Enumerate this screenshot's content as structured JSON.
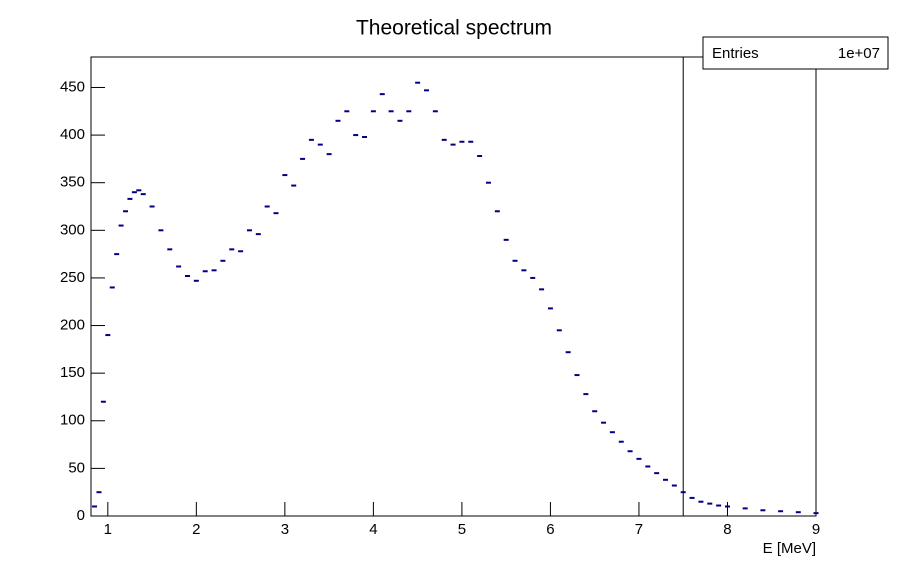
{
  "chart_data": {
    "type": "line",
    "title": "Theoretical spectrum",
    "x_label": "E [MeV]",
    "color": "#000080",
    "x": [
      0.85,
      0.9,
      0.95,
      1.0,
      1.05,
      1.1,
      1.15,
      1.2,
      1.25,
      1.3,
      1.35,
      1.4,
      1.5,
      1.6,
      1.7,
      1.8,
      1.9,
      2.0,
      2.1,
      2.2,
      2.3,
      2.4,
      2.5,
      2.6,
      2.7,
      2.8,
      2.9,
      3.0,
      3.1,
      3.2,
      3.3,
      3.4,
      3.5,
      3.6,
      3.7,
      3.8,
      3.9,
      4.0,
      4.1,
      4.2,
      4.3,
      4.4,
      4.5,
      4.6,
      4.7,
      4.8,
      4.9,
      5.0,
      5.1,
      5.2,
      5.3,
      5.4,
      5.5,
      5.6,
      5.7,
      5.8,
      5.9,
      6.0,
      6.1,
      6.2,
      6.3,
      6.4,
      6.5,
      6.6,
      6.7,
      6.8,
      6.9,
      7.0,
      7.1,
      7.2,
      7.3,
      7.4,
      7.5,
      7.6,
      7.7,
      7.8,
      7.9,
      8.0,
      8.2,
      8.4,
      8.6,
      8.8,
      9.0
    ],
    "values": [
      10,
      25,
      120,
      190,
      240,
      275,
      305,
      320,
      333,
      340,
      342,
      338,
      325,
      300,
      280,
      262,
      252,
      247,
      257,
      258,
      268,
      280,
      278,
      300,
      296,
      325,
      318,
      358,
      347,
      375,
      395,
      390,
      380,
      415,
      425,
      400,
      398,
      425,
      443,
      425,
      415,
      425,
      455,
      447,
      425,
      395,
      390,
      393,
      393,
      378,
      350,
      320,
      290,
      268,
      258,
      250,
      238,
      218,
      195,
      172,
      148,
      128,
      110,
      98,
      88,
      78,
      68,
      60,
      52,
      45,
      38,
      32,
      25,
      19,
      15,
      13,
      11,
      10,
      8,
      6,
      5,
      4,
      3
    ],
    "xlim": [
      0.81,
      9
    ],
    "ylim": [
      0,
      482
    ],
    "xticks": [
      1,
      2,
      3,
      4,
      5,
      6,
      7,
      8,
      9
    ],
    "yticks": [
      0,
      50,
      100,
      150,
      200,
      250,
      300,
      350,
      400,
      450
    ],
    "vline": 7.5,
    "stats": {
      "label": "Entries",
      "value": "1e+07"
    }
  }
}
